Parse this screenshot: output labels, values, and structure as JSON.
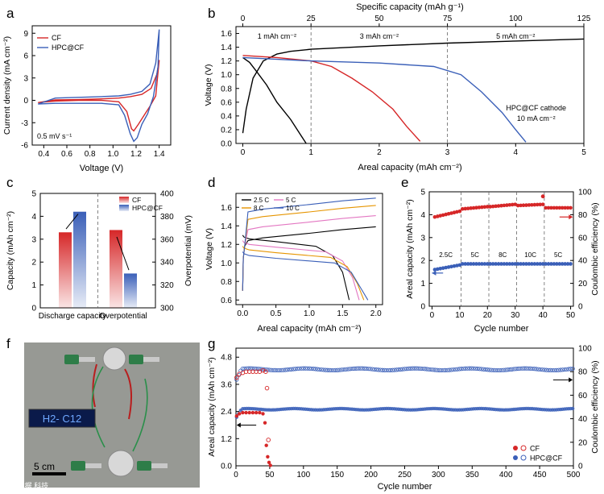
{
  "panels": {
    "a": "a",
    "b": "b",
    "c": "c",
    "d": "d",
    "e": "e",
    "f": "f",
    "g": "g"
  },
  "photo": {
    "display_text": "H2- C12",
    "scale_text": "5 cm",
    "watermark_text": "©大数据 科技"
  },
  "colors": {
    "cf": "#d62728",
    "hpc": "#3a5fb8",
    "black": "#000000"
  },
  "chart_data": [
    {
      "id": "a",
      "type": "line",
      "title": "",
      "xlabel": "Voltage (V)",
      "ylabel": "Current density (mA cm⁻²)",
      "xlim": [
        0.3,
        1.5
      ],
      "ylim": [
        -6,
        10
      ],
      "xticks": [
        0.4,
        0.6,
        0.8,
        1.0,
        1.2,
        1.4
      ],
      "yticks": [
        -6,
        -3,
        0,
        3,
        6,
        9
      ],
      "annotation": "0.5 mV s⁻¹",
      "legend": [
        "CF",
        "HPC@CF"
      ],
      "legend_position": "top-left",
      "series": [
        {
          "name": "CF",
          "color": "#d62728",
          "x": [
            0.35,
            0.5,
            0.7,
            0.9,
            1.05,
            1.12,
            1.16,
            1.18,
            1.22,
            1.27,
            1.32,
            1.37,
            1.4,
            1.38,
            1.33,
            1.25,
            1.15,
            1.05,
            0.9,
            0.7,
            0.5,
            0.35
          ],
          "y": [
            -0.3,
            -0.1,
            0,
            0,
            -0.2,
            -1.5,
            -3.8,
            -4.1,
            -3.2,
            -2.0,
            -0.8,
            0.6,
            5.4,
            3.5,
            1.6,
            0.8,
            0.5,
            0.3,
            0.2,
            0.1,
            0.05,
            -0.3
          ]
        },
        {
          "name": "HPC@CF",
          "color": "#3a5fb8",
          "x": [
            0.35,
            0.5,
            0.7,
            0.9,
            1.05,
            1.1,
            1.15,
            1.18,
            1.21,
            1.25,
            1.3,
            1.35,
            1.39,
            1.4,
            1.37,
            1.32,
            1.25,
            1.15,
            1.05,
            0.9,
            0.7,
            0.5,
            0.35
          ],
          "y": [
            -0.5,
            -0.4,
            -0.4,
            -0.4,
            -0.6,
            -2.0,
            -4.5,
            -5.5,
            -5.0,
            -3.2,
            -1.8,
            0.5,
            4.5,
            9.5,
            5.0,
            2.2,
            1.2,
            0.8,
            0.6,
            0.5,
            0.4,
            0.3,
            -0.5
          ]
        }
      ]
    },
    {
      "id": "b",
      "type": "line",
      "title": "",
      "xlabel": "Areal capacity (mAh cm⁻²)",
      "x2label": "Specific capacity (mAh g⁻¹)",
      "ylabel": "Voltage (V)",
      "xlim": [
        -0.1,
        5
      ],
      "x2lim": [
        0,
        125
      ],
      "ylim": [
        0,
        1.7
      ],
      "xticks": [
        0,
        1,
        2,
        3,
        4,
        5
      ],
      "x2ticks": [
        0,
        25,
        50,
        75,
        100,
        125
      ],
      "yticks": [
        0.0,
        0.2,
        0.4,
        0.6,
        0.8,
        1.0,
        1.2,
        1.4,
        1.6
      ],
      "region_labels": [
        "1 mAh cm⁻²",
        "3 mAh cm⁻²",
        "5 mAh cm⁻²"
      ],
      "annotation": [
        "HPC@CF cathode",
        "10 mA cm⁻²"
      ],
      "series": [
        {
          "name": "charge",
          "color": "#000000",
          "x": [
            0,
            0.05,
            0.15,
            0.3,
            0.5,
            0.7,
            1.0,
            2.0,
            3.0,
            4.0,
            5.0
          ],
          "y": [
            0.15,
            0.5,
            0.95,
            1.2,
            1.3,
            1.34,
            1.37,
            1.42,
            1.46,
            1.49,
            1.52
          ]
        },
        {
          "name": "discharge 1 mAh cm⁻²",
          "color": "#000000",
          "x": [
            0,
            0.1,
            0.2,
            0.35,
            0.5,
            0.7,
            0.85,
            0.93
          ],
          "y": [
            1.25,
            1.18,
            1.05,
            0.85,
            0.6,
            0.35,
            0.12,
            0.0
          ]
        },
        {
          "name": "discharge 3 mAh cm⁻²",
          "color": "#d62728",
          "x": [
            0,
            0.5,
            1.0,
            1.3,
            1.6,
            1.9,
            2.2,
            2.4,
            2.6
          ],
          "y": [
            1.28,
            1.25,
            1.2,
            1.12,
            0.95,
            0.75,
            0.5,
            0.25,
            0.03
          ]
        },
        {
          "name": "discharge 5 mAh cm⁻²",
          "color": "#3a5fb8",
          "x": [
            0,
            1.0,
            2.0,
            2.8,
            3.2,
            3.5,
            3.8,
            4.0,
            4.15
          ],
          "y": [
            1.25,
            1.2,
            1.17,
            1.12,
            1.0,
            0.75,
            0.45,
            0.2,
            0.02
          ]
        }
      ]
    },
    {
      "id": "c",
      "type": "bar",
      "title": "",
      "categories": [
        "Discharge capacity",
        "Overpotential"
      ],
      "ylabel": "Capacity (mAh cm⁻²)",
      "y2label": "Overpotential (mV)",
      "ylim": [
        0,
        5
      ],
      "y2lim": [
        300,
        400
      ],
      "yticks": [
        0,
        1,
        2,
        3,
        4,
        5
      ],
      "y2ticks": [
        300,
        320,
        340,
        360,
        380,
        400
      ],
      "legend": [
        "CF",
        "HPC@CF"
      ],
      "legend_position": "top-center",
      "series": [
        {
          "name": "CF",
          "color": "#d62728",
          "values": [
            3.3,
            368
          ]
        },
        {
          "name": "HPC@CF",
          "color": "#3a5fb8",
          "values": [
            4.2,
            330
          ]
        }
      ]
    },
    {
      "id": "d",
      "type": "line",
      "title": "",
      "xlabel": "Areal capacity (mAh cm⁻²)",
      "ylabel": "Voltage (V)",
      "xlim": [
        -0.1,
        2.1
      ],
      "ylim": [
        0.55,
        1.75
      ],
      "xticks": [
        0.0,
        0.5,
        1.0,
        1.5,
        2.0
      ],
      "yticks": [
        0.6,
        0.8,
        1.0,
        1.2,
        1.4,
        1.6
      ],
      "legend": [
        "2.5 C",
        "5 C",
        "8 C",
        "10 C"
      ],
      "legend_position": "top-left",
      "series": [
        {
          "name": "2.5 C",
          "color": "#000000",
          "charge_end": 1.39,
          "discharge_start": 1.28,
          "discharge_end_x": 1.6
        },
        {
          "name": "5 C",
          "color": "#e377c2",
          "charge_end": 1.51,
          "discharge_start": 1.22,
          "discharge_end_x": 1.75
        },
        {
          "name": "8 C",
          "color": "#e69500",
          "charge_end": 1.62,
          "discharge_start": 1.16,
          "discharge_end_x": 1.82
        },
        {
          "name": "10 C",
          "color": "#3a5fb8",
          "charge_end": 1.7,
          "discharge_start": 1.1,
          "discharge_end_x": 1.88
        }
      ]
    },
    {
      "id": "e",
      "type": "scatter",
      "title": "",
      "xlabel": "Cycle number",
      "ylabel": "Areal capacity (mAh cm⁻²)",
      "y2label": "Coulombic efficiency (%)",
      "xlim": [
        -1,
        51
      ],
      "ylim": [
        0,
        5
      ],
      "y2lim": [
        0,
        100
      ],
      "xticks": [
        0,
        10,
        20,
        30,
        40,
        50
      ],
      "yticks": [
        0,
        1,
        2,
        3,
        4,
        5
      ],
      "y2ticks": [
        0,
        20,
        40,
        60,
        80,
        100
      ],
      "rate_labels": [
        "2.5C",
        "5C",
        "8C",
        "10C",
        "5C"
      ],
      "series": [
        {
          "name": "Coulombic efficiency",
          "color": "#d62728",
          "segments": [
            [
              1,
              10,
              78,
              83
            ],
            [
              11,
              20,
              85,
              87
            ],
            [
              21,
              30,
              87,
              89
            ],
            [
              31,
              40,
              88,
              89
            ],
            [
              41,
              50,
              86,
              86
            ]
          ],
          "spike": [
            40,
            96
          ]
        },
        {
          "name": "Areal capacity",
          "color": "#3a5fb8",
          "segments": [
            [
              1,
              10,
              1.6,
              1.8
            ],
            [
              11,
              20,
              1.85,
              1.85
            ],
            [
              21,
              30,
              1.85,
              1.85
            ],
            [
              31,
              40,
              1.85,
              1.85
            ],
            [
              41,
              50,
              1.85,
              1.85
            ]
          ]
        }
      ]
    },
    {
      "id": "g",
      "type": "scatter",
      "title": "",
      "xlabel": "Cycle number",
      "ylabel": "Areal capacity (mAh cm⁻²)",
      "y2label": "Coulombic efficiency (%)",
      "xlim": [
        0,
        500
      ],
      "ylim": [
        0,
        5.2
      ],
      "y2lim": [
        0,
        100
      ],
      "xticks": [
        0,
        50,
        100,
        150,
        200,
        250,
        300,
        350,
        400,
        450,
        500
      ],
      "yticks": [
        0.0,
        1.2,
        2.4,
        3.6,
        4.8
      ],
      "y2ticks": [
        0,
        20,
        40,
        60,
        80,
        100
      ],
      "legend": [
        "CF",
        "HPC@CF"
      ],
      "legend_position": "bottom-right",
      "series": [
        {
          "name": "CF capacity",
          "color": "#d62728",
          "x": [
            1,
            5,
            10,
            15,
            20,
            25,
            30,
            35,
            40,
            43,
            45,
            47,
            49,
            51
          ],
          "y": [
            2.2,
            2.3,
            2.35,
            2.35,
            2.35,
            2.35,
            2.35,
            2.35,
            2.3,
            1.9,
            0.9,
            0.4,
            0.15,
            0.02
          ]
        },
        {
          "name": "CF CE",
          "color": "#d62728",
          "x": [
            1,
            5,
            10,
            15,
            20,
            25,
            30,
            35,
            40,
            44,
            46,
            48
          ],
          "y": [
            75,
            78,
            79,
            80,
            80,
            80,
            80,
            80,
            81,
            80,
            66,
            22
          ]
        },
        {
          "name": "HPC@CF capacity",
          "color": "#3a5fb8",
          "level": 2.5,
          "start": 2.1,
          "end_cycle": 500
        },
        {
          "name": "HPC@CF CE",
          "color": "#3a5fb8",
          "level": 82,
          "start": 72,
          "end_cycle": 500
        }
      ]
    }
  ]
}
